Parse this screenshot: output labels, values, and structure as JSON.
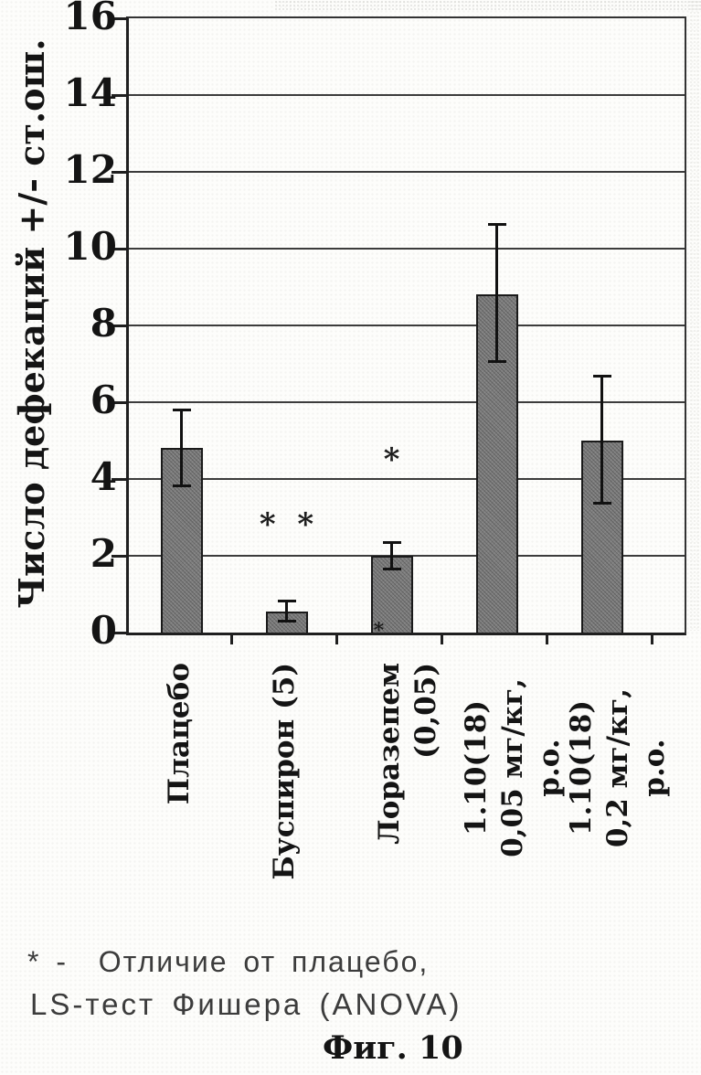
{
  "figure": {
    "caption": "Фиг. 10",
    "footnote_line1": "* -  Отличие от плацебо,",
    "footnote_line2": "LS-тест Фишера (ANOVA)"
  },
  "chart_data": {
    "type": "bar",
    "title": "",
    "xlabel": "",
    "ylabel": "Число дефекаций +/- ст.ош.",
    "ylim": [
      0,
      16
    ],
    "ytick_step": 2,
    "grid": "horizontal",
    "legend": "none",
    "categories": [
      "Плацебо",
      "Буспирон (5)",
      "Лоразепем (0,05)",
      "1.10(18)\n0,05 мг/кг, p.o.",
      "1.10(18)\n0,2 мг/кг, p.o."
    ],
    "values": [
      4.8,
      0.55,
      2.0,
      8.8,
      5.0
    ],
    "errors_up": [
      1.0,
      0.28,
      0.35,
      1.85,
      1.7
    ],
    "errors_down": [
      1.0,
      0.27,
      0.35,
      1.75,
      1.65
    ],
    "annotations": [
      {
        "bar_index": 1,
        "text": "*  *",
        "value": 2.9
      },
      {
        "bar_index": 2,
        "text": "*",
        "value": 4.6
      },
      {
        "bar_index": 2,
        "text": "*",
        "value": 0.12,
        "dx": -14,
        "small": true
      }
    ],
    "colors": {
      "bar_fill": "#7d7d7d",
      "bar_border": "#1a1a1a",
      "axis": "#1f1f1f",
      "grid": "#3c3c3c",
      "text": "#141414"
    }
  }
}
